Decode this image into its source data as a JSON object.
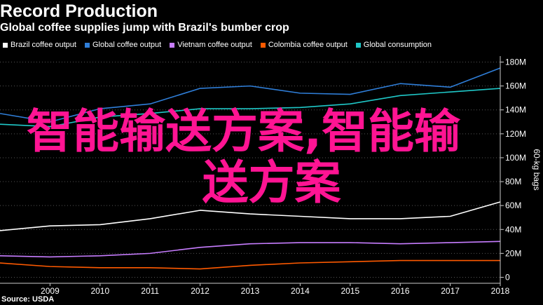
{
  "header": {
    "title": "Record Production",
    "subtitle": "Global coffee supplies jump with Brazil's bumber crop"
  },
  "source": "Source: USDA",
  "overlay": {
    "line1": "智能输送方案,智能输",
    "line2": "送方案"
  },
  "chart_data": {
    "type": "line",
    "x": [
      2008,
      2009,
      2010,
      2011,
      2012,
      2013,
      2014,
      2015,
      2016,
      2017,
      2018
    ],
    "x_ticks": [
      "2009",
      "2010",
      "2011",
      "2012",
      "2013",
      "2014",
      "2015",
      "2016",
      "2017",
      "2018"
    ],
    "xlim": [
      2008,
      2018
    ],
    "ylabel": "60-kg bags",
    "ylim": [
      -5,
      185
    ],
    "y_ticks": [
      {
        "value": 0,
        "label": "0"
      },
      {
        "value": 20,
        "label": "20M"
      },
      {
        "value": 40,
        "label": "40M"
      },
      {
        "value": 60,
        "label": "60M"
      },
      {
        "value": 80,
        "label": "80M"
      },
      {
        "value": 100,
        "label": "100M"
      },
      {
        "value": 120,
        "label": "120M"
      },
      {
        "value": 140,
        "label": "140M"
      },
      {
        "value": 160,
        "label": "160M"
      },
      {
        "value": 180,
        "label": "180M"
      }
    ],
    "axis_position": "right",
    "grid": true,
    "legend_position": "top-left",
    "series": [
      {
        "name": "Brazil coffee output",
        "color": "#ffffff",
        "values": [
          39,
          43,
          44,
          49,
          56,
          53,
          51,
          49,
          49,
          51,
          63
        ]
      },
      {
        "name": "Global coffee output",
        "color": "#2f7ed8",
        "values": [
          137,
          130,
          141,
          145,
          158,
          160,
          154,
          153,
          162,
          159,
          175
        ]
      },
      {
        "name": "Vietnam coffee output",
        "color": "#c77dff",
        "values": [
          18,
          17,
          18,
          20,
          25,
          28,
          29,
          29,
          28,
          29,
          30
        ]
      },
      {
        "name": "Colombia coffee output",
        "color": "#ff5a00",
        "values": [
          12,
          9,
          8,
          8,
          7,
          10,
          12,
          13,
          14,
          14,
          14
        ]
      },
      {
        "name": "Global consumption",
        "color": "#1fc8c8",
        "values": [
          128,
          126,
          134,
          137,
          141,
          141,
          142,
          145,
          152,
          155,
          158
        ]
      }
    ]
  }
}
